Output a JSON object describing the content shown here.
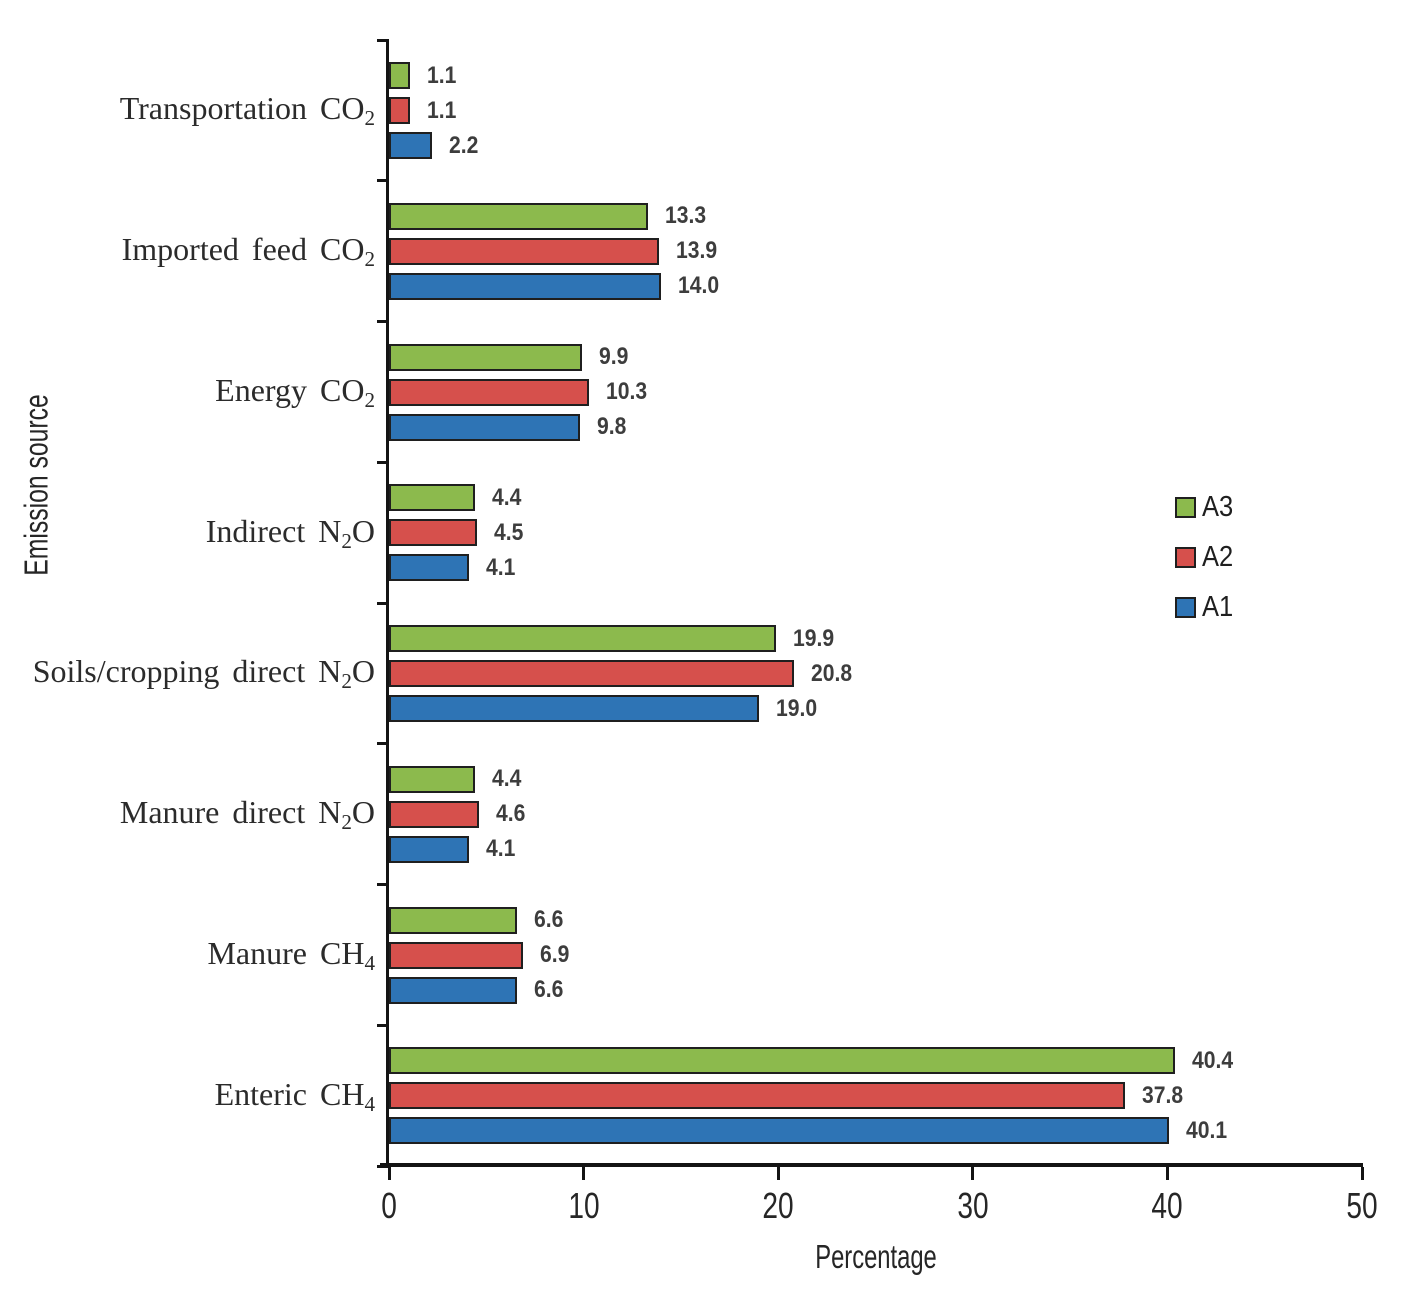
{
  "chart_data": {
    "type": "bar",
    "orientation": "horizontal",
    "xlabel": "Percentage",
    "ylabel": "Emission source",
    "xlim": [
      0,
      50
    ],
    "xticks": [
      "0",
      "10",
      "20",
      "30",
      "40",
      "50"
    ],
    "grid": false,
    "legend_position": "center-right",
    "categories": [
      {
        "segments": [
          {
            "t": "Transportation CO"
          },
          {
            "t": "2",
            "sub": true
          }
        ]
      },
      {
        "segments": [
          {
            "t": "Imported feed CO"
          },
          {
            "t": "2",
            "sub": true
          }
        ]
      },
      {
        "segments": [
          {
            "t": "Energy CO"
          },
          {
            "t": "2",
            "sub": true
          }
        ]
      },
      {
        "segments": [
          {
            "t": "Indirect N"
          },
          {
            "t": "2",
            "sub": true
          },
          {
            "t": "O"
          }
        ]
      },
      {
        "segments": [
          {
            "t": "Soils/cropping direct N"
          },
          {
            "t": "2",
            "sub": true
          },
          {
            "t": "O"
          }
        ]
      },
      {
        "segments": [
          {
            "t": "Manure direct N"
          },
          {
            "t": "2",
            "sub": true
          },
          {
            "t": "O"
          }
        ]
      },
      {
        "segments": [
          {
            "t": "Manure CH"
          },
          {
            "t": "4",
            "sub": true
          }
        ]
      },
      {
        "segments": [
          {
            "t": "Enteric CH"
          },
          {
            "t": "4",
            "sub": true
          }
        ]
      }
    ],
    "series": [
      {
        "name": "A3",
        "color": "#8CBA4D",
        "values": [
          1.1,
          13.3,
          9.9,
          4.4,
          19.9,
          4.4,
          6.6,
          40.4
        ]
      },
      {
        "name": "A2",
        "color": "#D6504C",
        "values": [
          1.1,
          13.9,
          10.3,
          4.5,
          20.8,
          4.6,
          6.9,
          37.8
        ]
      },
      {
        "name": "A1",
        "color": "#2E74B5",
        "values": [
          2.2,
          14.0,
          9.8,
          4.1,
          19.0,
          4.1,
          6.6,
          40.1
        ]
      }
    ],
    "colors": {
      "axis": "#141414",
      "bar_border": "#1f1f1f",
      "value_label": "#3d3d3d"
    }
  }
}
